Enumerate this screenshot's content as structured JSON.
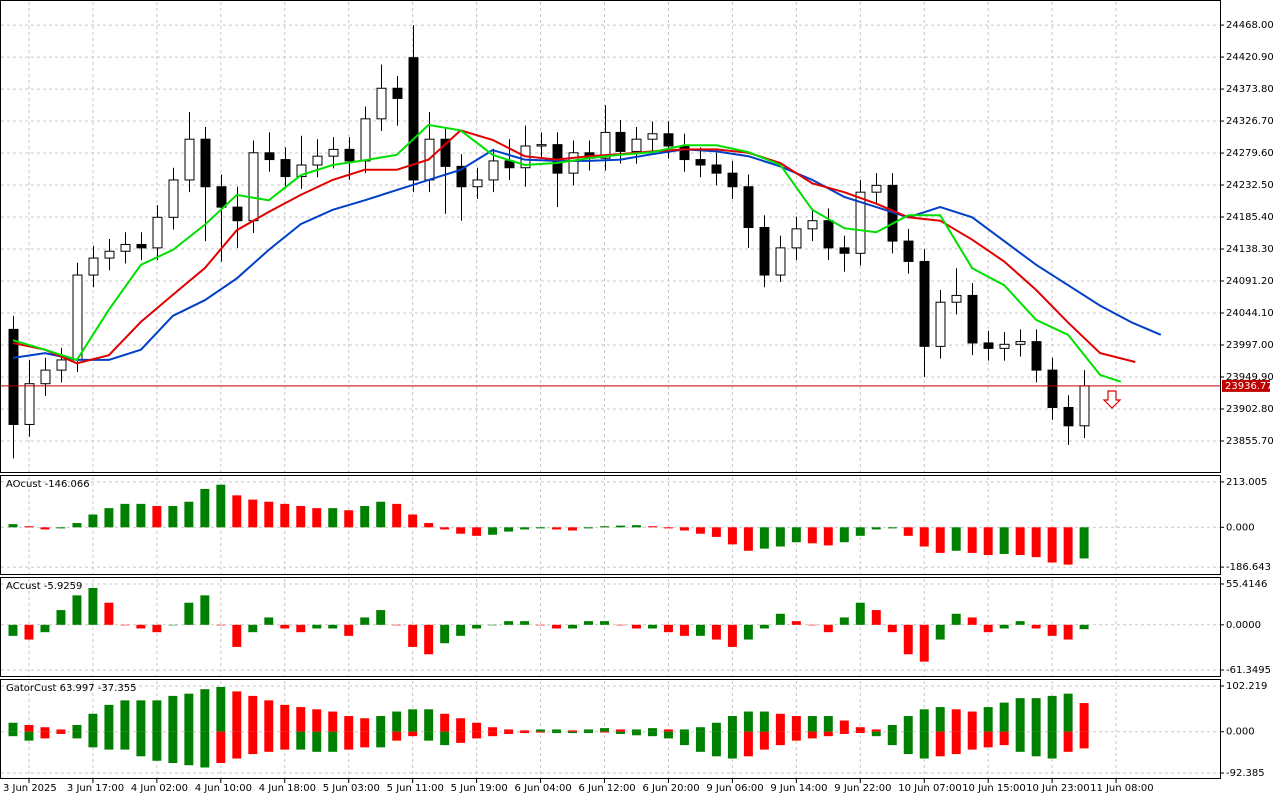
{
  "chart_data": [
    {
      "type": "candlestick",
      "xlim": [
        -0.75,
        75.5
      ],
      "ylim": [
        23810,
        24502
      ],
      "grid": true,
      "yticks": [
        {
          "value": 23855.7,
          "label": "23855.70"
        },
        {
          "value": 23902.8,
          "label": "23902.80"
        },
        {
          "value": 23949.9,
          "label": "23949.90"
        },
        {
          "value": 23997,
          "label": "23997.00"
        },
        {
          "value": 24044.1,
          "label": "24044.10"
        },
        {
          "value": 24091.2,
          "label": "24091.20"
        },
        {
          "value": 24138.3,
          "label": "24138.30"
        },
        {
          "value": 24185.4,
          "label": "24185.40"
        },
        {
          "value": 24232.5,
          "label": "24232.50"
        },
        {
          "value": 24279.6,
          "label": "24279.60"
        },
        {
          "value": 24326.7,
          "label": "24326.70"
        },
        {
          "value": 24373.8,
          "label": "24373.80"
        },
        {
          "value": 24420.9,
          "label": "24420.90"
        },
        {
          "value": 24468,
          "label": "24468.00"
        }
      ],
      "open": [
        24020,
        23880,
        23940,
        23960,
        23975,
        24100,
        24125,
        24135,
        24145,
        24140,
        24185,
        24240,
        24300,
        24230,
        24200,
        24180,
        24280,
        24270,
        24245,
        24262,
        24275,
        24285,
        24268,
        24330,
        24375,
        24420,
        24240,
        24300,
        24260,
        24230,
        24240,
        24268,
        24258,
        24290,
        24292,
        24250,
        24280,
        24272,
        24310,
        24282,
        24300,
        24308,
        24290,
        24270,
        24262,
        24250,
        24230,
        24170,
        24100,
        24140,
        24168,
        24180,
        24140,
        24132,
        24222,
        24232,
        24150,
        24120,
        23995,
        24060,
        24070,
        24000,
        23992,
        23998,
        24002,
        23960,
        23905,
        23878
      ],
      "high": [
        24040,
        23975,
        23978,
        23993,
        24118,
        24143,
        24153,
        24163,
        24163,
        24203,
        24258,
        24340,
        24318,
        24248,
        24230,
        24298,
        24310,
        24288,
        24305,
        24300,
        24303,
        24303,
        24348,
        24410,
        24393,
        24468,
        24340,
        24318,
        24278,
        24258,
        24286,
        24300,
        24320,
        24310,
        24310,
        24298,
        24298,
        24350,
        24328,
        24318,
        24326,
        24326,
        24308,
        24288,
        24280,
        24268,
        24248,
        24188,
        24158,
        24186,
        24198,
        24198,
        24158,
        24240,
        24250,
        24250,
        24168,
        24138,
        24078,
        24110,
        24088,
        24018,
        24016,
        24020,
        24020,
        23978,
        23923,
        23960
      ],
      "low": [
        23830,
        23862,
        23922,
        23942,
        23957,
        24082,
        24107,
        24117,
        24122,
        24122,
        24167,
        24222,
        24150,
        24120,
        24140,
        24162,
        24252,
        24227,
        24227,
        24244,
        24257,
        24240,
        24250,
        24312,
        24320,
        24222,
        24222,
        24190,
        24180,
        24212,
        24222,
        24240,
        24230,
        24272,
        24200,
        24232,
        24254,
        24254,
        24264,
        24264,
        24282,
        24272,
        24252,
        24244,
        24232,
        24212,
        24140,
        24082,
        24090,
        24122,
        24150,
        24122,
        24105,
        24114,
        24204,
        24132,
        24102,
        23950,
        23977,
        24042,
        23982,
        23974,
        23974,
        23980,
        23942,
        23887,
        23850,
        23860
      ],
      "close": [
        23880,
        23940,
        23960,
        23975,
        24100,
        24125,
        24135,
        24145,
        24140,
        24185,
        24240,
        24300,
        24230,
        24200,
        24180,
        24280,
        24270,
        24245,
        24262,
        24275,
        24285,
        24268,
        24330,
        24375,
        24360,
        24240,
        24300,
        24260,
        24230,
        24240,
        24268,
        24258,
        24290,
        24292,
        24250,
        24280,
        24272,
        24310,
        24282,
        24300,
        24308,
        24290,
        24270,
        24262,
        24250,
        24230,
        24170,
        24100,
        24140,
        24168,
        24180,
        24140,
        24132,
        24222,
        24232,
        24150,
        24120,
        23995,
        24060,
        24070,
        24000,
        23992,
        23998,
        24002,
        23960,
        23905,
        23878,
        23936.77
      ],
      "last_price": 23936.77,
      "series": [
        {
          "color": "#0040c8",
          "x": [
            0,
            2,
            4,
            6,
            8,
            10,
            12,
            14,
            16,
            18,
            20,
            22,
            24,
            26,
            28,
            30,
            32,
            34,
            36,
            38,
            40,
            42,
            44,
            46,
            48,
            50,
            52,
            54,
            56,
            58,
            60,
            62,
            64,
            66,
            68,
            70,
            71.8
          ],
          "values": [
            23978,
            23985,
            23975,
            23975,
            23990,
            24040,
            24063,
            24095,
            24137,
            24175,
            24196,
            24210,
            24225,
            24240,
            24255,
            24284,
            24270,
            24268,
            24268,
            24270,
            24278,
            24285,
            24282,
            24275,
            24260,
            24240,
            24215,
            24200,
            24185,
            24200,
            24185,
            24150,
            24115,
            24085,
            24055,
            24030,
            24012
          ]
        },
        {
          "color": "#e00000",
          "x": [
            0,
            2,
            4,
            6,
            8,
            10,
            12,
            14,
            16,
            18,
            20,
            22,
            24,
            26,
            28,
            30,
            32,
            34,
            36,
            38,
            40,
            42,
            44,
            46,
            48,
            50,
            52,
            54,
            56,
            58,
            60,
            62,
            64,
            66,
            68,
            70.2
          ],
          "values": [
            24000,
            23990,
            23970,
            23982,
            24031,
            24071,
            24110,
            24166,
            24193,
            24218,
            24240,
            24255,
            24255,
            24270,
            24313,
            24299,
            24275,
            24270,
            24275,
            24278,
            24282,
            24285,
            24285,
            24280,
            24265,
            24235,
            24222,
            24205,
            24185,
            24180,
            24152,
            24120,
            24078,
            24030,
            23985,
            23972
          ]
        },
        {
          "color": "#00e000",
          "x": [
            0,
            2,
            4,
            6,
            8,
            10,
            12,
            14,
            16,
            18,
            20,
            22,
            24,
            26,
            28,
            30,
            32,
            34,
            36,
            38,
            40,
            42,
            44,
            46,
            48,
            50,
            52,
            54,
            56,
            58,
            60,
            62,
            64,
            66,
            68,
            69.3
          ],
          "values": [
            24004,
            23990,
            23975,
            24049,
            24115,
            24137,
            24174,
            24218,
            24210,
            24247,
            24262,
            24269,
            24277,
            24321,
            24313,
            24277,
            24262,
            24265,
            24272,
            24277,
            24281,
            24291,
            24291,
            24281,
            24262,
            24196,
            24169,
            24163,
            24188,
            24188,
            24110,
            24085,
            24034,
            24012,
            23953,
            23943
          ]
        }
      ]
    },
    {
      "type": "bar",
      "title": "AOcust -146.066",
      "xlim": [
        -0.75,
        75.5
      ],
      "ylim": [
        -219,
        236
      ],
      "grid": true,
      "yticks": [
        213.005,
        {
          "value": 0,
          "label": "0.000"
        },
        -186.643
      ],
      "up_color": "#008000",
      "down_color": "#ff0000",
      "values": [
        15,
        5,
        -10,
        -5,
        20,
        60,
        90,
        110,
        110,
        100,
        100,
        120,
        180,
        200,
        150,
        130,
        120,
        110,
        100,
        90,
        90,
        80,
        100,
        120,
        110,
        60,
        20,
        -10,
        -30,
        -40,
        -35,
        -20,
        -10,
        -5,
        -10,
        -15,
        -5,
        5,
        8,
        10,
        5,
        -5,
        -15,
        -30,
        -45,
        -80,
        -110,
        -100,
        -90,
        -70,
        -75,
        -85,
        -70,
        -40,
        -10,
        -5,
        -40,
        -90,
        -120,
        -110,
        -120,
        -130,
        -125,
        -130,
        -140,
        -165,
        -175,
        -146.066
      ]
    },
    {
      "type": "bar",
      "title": "ACcust -5.9259",
      "xlim": [
        -0.75,
        75.5
      ],
      "ylim": [
        -69.5,
        62.2
      ],
      "grid": true,
      "yticks": [
        55.4146,
        {
          "value": 0,
          "label": "0.0000"
        },
        -61.3495
      ],
      "up_color": "#008000",
      "down_color": "#ff0000",
      "values": [
        -15,
        -20,
        -10,
        20,
        40,
        50,
        30,
        0,
        -5,
        -10,
        0,
        30,
        40,
        0,
        -30,
        -10,
        10,
        -5,
        -10,
        -5,
        -5,
        -15,
        10,
        20,
        0,
        -30,
        -40,
        -25,
        -15,
        -5,
        0,
        5,
        5,
        0,
        -5,
        -5,
        5,
        5,
        0,
        -5,
        -5,
        -10,
        -15,
        -15,
        -20,
        -30,
        -20,
        -5,
        15,
        5,
        0,
        -10,
        10,
        30,
        20,
        -10,
        -40,
        -50,
        -20,
        15,
        10,
        -10,
        -5,
        5,
        -5,
        -15,
        -20,
        -5.9259
      ]
    },
    {
      "type": "gator",
      "title": "GatorCust 63.997 -37.355",
      "xlim": [
        -0.75,
        75.5
      ],
      "ylim": [
        -103.5,
        113.3
      ],
      "grid": true,
      "yticks": [
        102.219,
        {
          "value": 0,
          "label": "0.000"
        },
        -92.385
      ],
      "up_color": "#008000",
      "down_color": "#ff0000",
      "xticks": [
        {
          "value": 1,
          "label": "3 Jun 2025"
        },
        {
          "value": 5,
          "label": "3 Jun 17:00"
        },
        {
          "value": 9,
          "label": "4 Jun 02:00"
        },
        {
          "value": 13,
          "label": "4 Jun 10:00"
        },
        {
          "value": 17,
          "label": "4 Jun 18:00"
        },
        {
          "value": 21,
          "label": "5 Jun 03:00"
        },
        {
          "value": 25,
          "label": "5 Jun 11:00"
        },
        {
          "value": 29,
          "label": "5 Jun 19:00"
        },
        {
          "value": 33,
          "label": "6 Jun 04:00"
        },
        {
          "value": 37,
          "label": "6 Jun 12:00"
        },
        {
          "value": 41,
          "label": "6 Jun 20:00"
        },
        {
          "value": 45,
          "label": "9 Jun 06:00"
        },
        {
          "value": 49,
          "label": "9 Jun 14:00"
        },
        {
          "value": 53,
          "label": "9 Jun 22:00"
        },
        {
          "value": 57,
          "label": "10 Jun 07:00"
        },
        {
          "value": 61,
          "label": "10 Jun 15:00"
        },
        {
          "value": 65,
          "label": "10 Jun 23:00"
        },
        {
          "value": 69,
          "label": "11 Jun 08:00"
        }
      ],
      "upper": [
        20,
        15,
        10,
        5,
        15,
        40,
        60,
        70,
        70,
        70,
        80,
        85,
        95,
        100,
        90,
        80,
        70,
        60,
        55,
        50,
        45,
        35,
        30,
        35,
        45,
        50,
        50,
        40,
        30,
        20,
        10,
        5,
        3,
        5,
        5,
        3,
        5,
        8,
        5,
        5,
        8,
        5,
        5,
        10,
        20,
        35,
        45,
        45,
        40,
        35,
        35,
        35,
        25,
        10,
        5,
        15,
        35,
        50,
        55,
        50,
        45,
        55,
        65,
        75,
        75,
        80,
        85,
        63.997
      ],
      "lower": [
        -10,
        -20,
        -15,
        -5,
        -15,
        -35,
        -40,
        -40,
        -55,
        -65,
        -70,
        -75,
        -80,
        -70,
        -60,
        -50,
        -45,
        -40,
        -40,
        -45,
        -45,
        -40,
        -35,
        -35,
        -20,
        -10,
        -20,
        -30,
        -25,
        -15,
        -10,
        -5,
        -3,
        -2,
        -3,
        -3,
        -3,
        -2,
        -5,
        -8,
        -10,
        -15,
        -30,
        -45,
        -55,
        -60,
        -55,
        -40,
        -30,
        -20,
        -15,
        -10,
        -5,
        -3,
        -10,
        -30,
        -50,
        -60,
        -55,
        -50,
        -40,
        -35,
        -30,
        -45,
        -55,
        -60,
        -45,
        -37.355
      ]
    }
  ]
}
